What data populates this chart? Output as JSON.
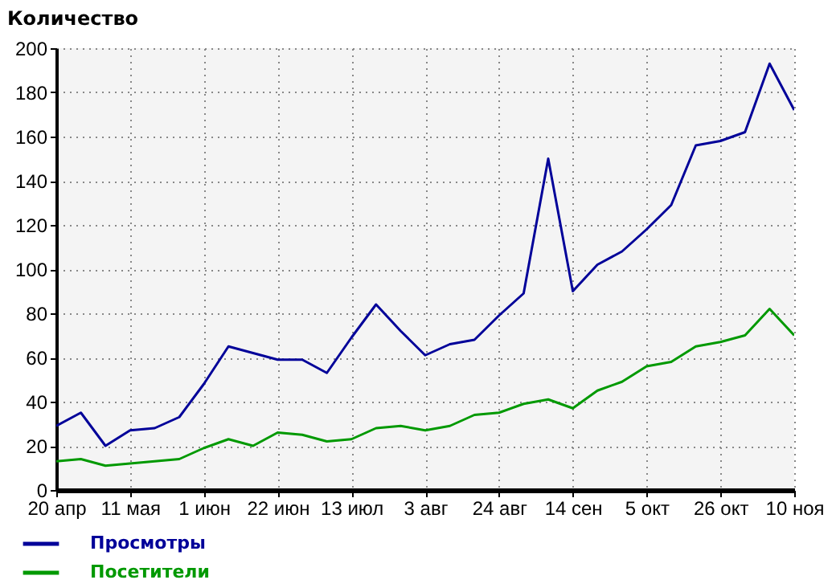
{
  "chart_data": {
    "type": "line",
    "ylabel": "Количество",
    "categories": [
      "20 апр",
      null,
      null,
      "11 мая",
      null,
      null,
      "1 июн",
      null,
      null,
      "22 июн",
      null,
      null,
      "13 июл",
      null,
      null,
      "3 авг",
      null,
      null,
      "24 авг",
      null,
      null,
      "14 сен",
      null,
      null,
      "5 окт",
      null,
      null,
      "26 окт",
      null,
      null,
      "10 ноя"
    ],
    "series": [
      {
        "name": "Просмотры",
        "color": "#000099",
        "values": [
          29,
          35,
          20,
          27,
          28,
          33,
          48,
          65,
          62,
          59,
          59,
          53,
          69,
          84,
          72,
          61,
          66,
          68,
          79,
          89,
          150,
          90,
          102,
          108,
          118,
          129,
          156,
          158,
          162,
          193,
          172
        ]
      },
      {
        "name": "Посетители",
        "color": "#009900",
        "values": [
          13,
          14,
          11,
          12,
          13,
          14,
          19,
          23,
          20,
          26,
          25,
          22,
          23,
          28,
          29,
          27,
          29,
          34,
          35,
          39,
          41,
          37,
          45,
          49,
          56,
          58,
          65,
          67,
          70,
          82,
          70
        ]
      }
    ],
    "ylim": [
      0,
      200
    ],
    "yticks": [
      0,
      20,
      40,
      60,
      80,
      100,
      120,
      140,
      160,
      180,
      200
    ],
    "grid": true,
    "legend": "bottom left",
    "line_style": "solid"
  }
}
